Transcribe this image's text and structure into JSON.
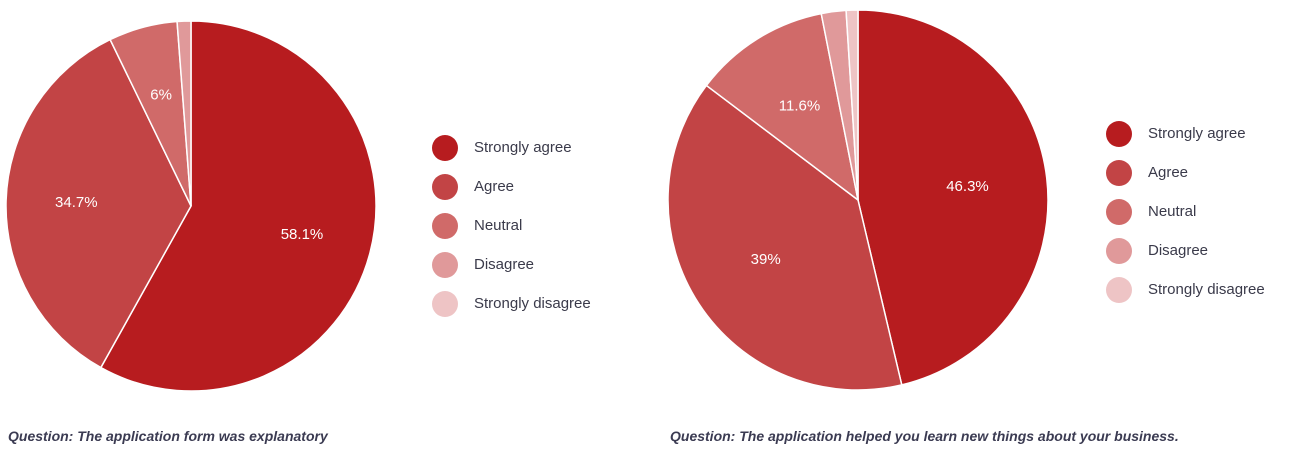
{
  "chart_data": [
    {
      "type": "pie",
      "categories": [
        "Strongly agree",
        "Agree",
        "Neutral",
        "Disagree",
        "Strongly disagree"
      ],
      "values": [
        58.1,
        34.7,
        6,
        1.2,
        0
      ],
      "data_labels": [
        "58.1%",
        "34.7%",
        "6%",
        "",
        ""
      ],
      "colors": [
        "#b71c1f",
        "#c24445",
        "#d06a69",
        "#e0999a",
        "#eec4c5"
      ],
      "legend": "right",
      "caption": "Question: The application form was explanatory"
    },
    {
      "type": "pie",
      "categories": [
        "Strongly agree",
        "Agree",
        "Neutral",
        "Disagree",
        "Strongly disagree"
      ],
      "values": [
        46.3,
        39,
        11.6,
        2.1,
        1
      ],
      "data_labels": [
        "46.3%",
        "39%",
        "11.6%",
        "",
        ""
      ],
      "colors": [
        "#b71c1f",
        "#c24445",
        "#d06a69",
        "#e0999a",
        "#eec4c5"
      ],
      "legend": "right",
      "caption": "Question: The application helped you learn new things about your business."
    }
  ]
}
